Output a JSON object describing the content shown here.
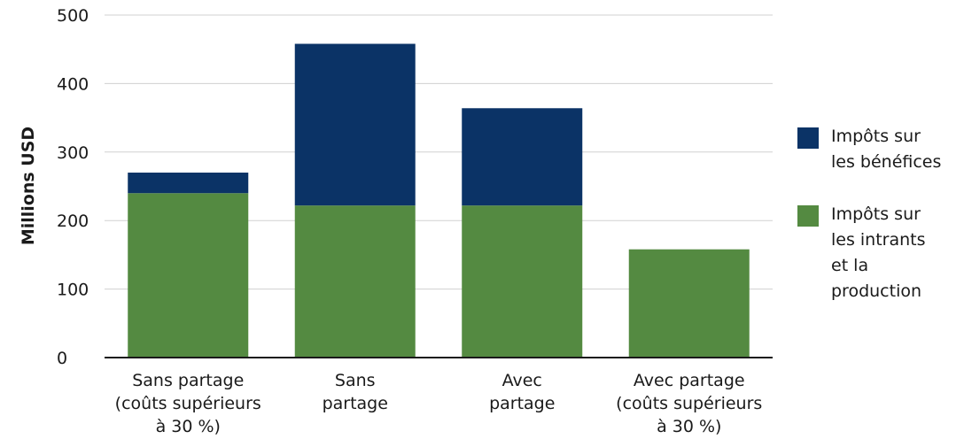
{
  "chart_data": {
    "type": "bar",
    "stacked": true,
    "categories": [
      [
        "Sans partage",
        "(coûts supérieurs",
        "à 30 %)"
      ],
      [
        "Sans",
        "partage"
      ],
      [
        "Avec",
        "partage"
      ],
      [
        "Avec partage",
        "(coûts supérieurs",
        "à 30 %)"
      ]
    ],
    "series": [
      {
        "name": "Impôts sur les intrants et la production",
        "color": "#548a41",
        "values": [
          240,
          222,
          222,
          158
        ]
      },
      {
        "name": "Impôts sur les bénéfices",
        "color": "#0b3366",
        "values": [
          30,
          236,
          142,
          0
        ]
      }
    ],
    "ylabel": "Millions USD",
    "ylim": [
      0,
      500
    ],
    "yticks": [
      0,
      100,
      200,
      300,
      400,
      500
    ],
    "grid": true,
    "legend_position": "right",
    "legend": [
      {
        "label": "Impôts sur les bénéfices",
        "color": "#0b3366",
        "lines": [
          "Impôts sur",
          "les bénéfices"
        ]
      },
      {
        "label": "Impôts sur les intrants et la production",
        "color": "#548a41",
        "lines": [
          "Impôts sur",
          "les intrants",
          "et la",
          "production"
        ]
      }
    ]
  }
}
